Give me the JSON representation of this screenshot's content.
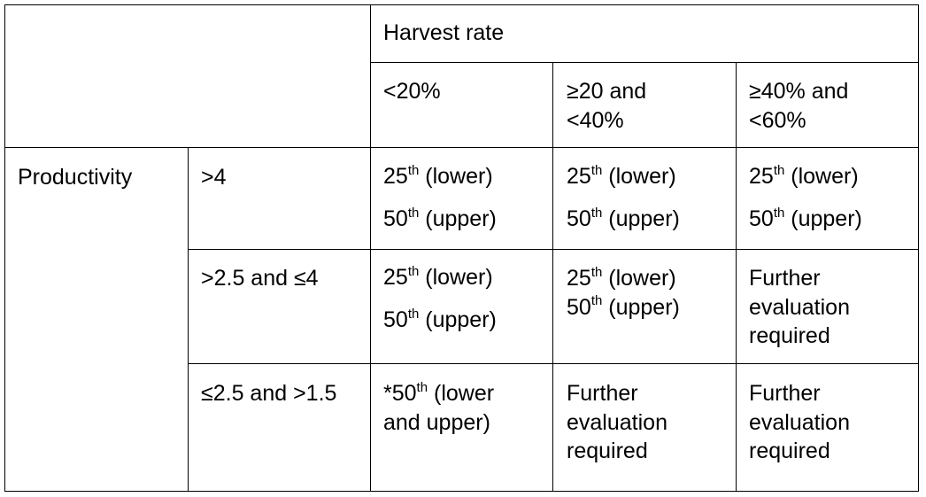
{
  "table": {
    "header": {
      "group_label": "Harvest rate",
      "columns": [
        "<20%",
        "≥20 and\n<40%",
        "≥40% and\n<60%"
      ]
    },
    "row_group_label": "Productivity",
    "rows": [
      {
        "label": ">4",
        "cells": [
          {
            "lines": [
              {
                "num": "25",
                "sup": "th",
                "rest": " (lower)"
              },
              {
                "num": "50",
                "sup": "th",
                "rest": " (upper)"
              }
            ]
          },
          {
            "lines": [
              {
                "num": "25",
                "sup": "th",
                "rest": " (lower)"
              },
              {
                "num": "50",
                "sup": "th",
                "rest": " (upper)"
              }
            ]
          },
          {
            "lines": [
              {
                "num": "25",
                "sup": "th",
                "rest": " (lower)"
              },
              {
                "num": "50",
                "sup": "th",
                "rest": " (upper)"
              }
            ]
          }
        ]
      },
      {
        "label": ">2.5 and ≤4",
        "cells": [
          {
            "lines": [
              {
                "num": "25",
                "sup": "th",
                "rest": " (lower)"
              },
              {
                "num": "50",
                "sup": "th",
                "rest": " (upper)"
              }
            ]
          },
          {
            "lines": [
              {
                "num": "25",
                "sup": "th",
                "rest": " (lower)"
              },
              {
                "num": "50",
                "sup": "th",
                "rest": " (upper)"
              }
            ]
          },
          {
            "text": "Further\nevaluation\nrequired"
          }
        ]
      },
      {
        "label": "≤2.5 and >1.5",
        "cells": [
          {
            "lines": [
              {
                "num": "*50",
                "sup": "th",
                "rest": " (lower"
              },
              {
                "num": "",
                "sup": "",
                "rest": "and upper)"
              }
            ]
          },
          {
            "text": "Further\nevaluation\nrequired"
          },
          {
            "text": "Further\nevaluation\nrequired"
          }
        ]
      }
    ]
  }
}
